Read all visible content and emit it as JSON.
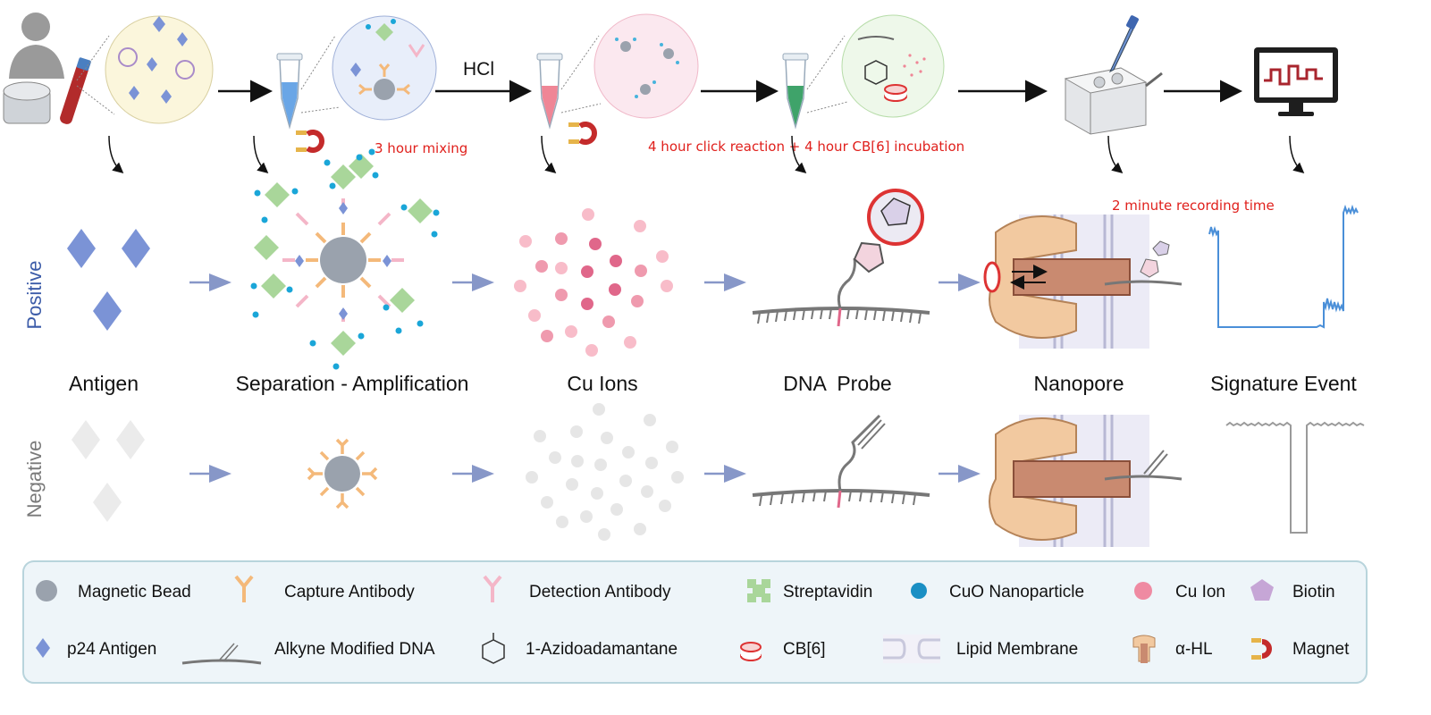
{
  "process": {
    "hcl_label": "HCl",
    "timing_mixing": "3 hour mixing",
    "timing_click": "4 hour click reaction + 4 hour CB[6] incubation",
    "timing_recording": "2 minute recording time"
  },
  "rows": {
    "positive": "Positive",
    "negative": "Negative"
  },
  "stages": [
    "Antigen",
    "Separation - Amplification",
    "Cu Ions",
    "DNA  Probe",
    "Nanopore",
    "Signature Event"
  ],
  "legend": [
    {
      "icon": "magnetic-bead-icon",
      "label": "Magnetic Bead"
    },
    {
      "icon": "capture-antibody-icon",
      "label": "Capture Antibody"
    },
    {
      "icon": "detection-antibody-icon",
      "label": "Detection Antibody"
    },
    {
      "icon": "streptavidin-icon",
      "label": "Streptavidin"
    },
    {
      "icon": "cuo-nanoparticle-icon",
      "label": "CuO Nanoparticle"
    },
    {
      "icon": "cu-ion-icon",
      "label": "Cu Ion"
    },
    {
      "icon": "biotin-icon",
      "label": "Biotin"
    },
    {
      "icon": "p24-antigen-icon",
      "label": "p24 Antigen"
    },
    {
      "icon": "alkyne-dna-icon",
      "label": "Alkyne Modified DNA"
    },
    {
      "icon": "azidoadamantane-icon",
      "label": "1-Azidoadamantane"
    },
    {
      "icon": "cb6-icon",
      "label": "CB[6]"
    },
    {
      "icon": "lipid-membrane-icon",
      "label": "Lipid Membrane"
    },
    {
      "icon": "alpha-hl-icon",
      "label": "α-HL"
    },
    {
      "icon": "magnet-icon",
      "label": "Magnet"
    }
  ],
  "colors": {
    "antigen": "#7b93d6",
    "capture_antibody": "#f4b97a",
    "detection_antibody": "#f4b6c8",
    "streptavidin": "#a9d69a",
    "cuo": "#1aa6d8",
    "cu_ion": "#e8789a",
    "biotin": "#c6a6d6",
    "bead": "#9aa2ad",
    "positive_label": "#3b5ba8",
    "negative_label": "#7a7a7a",
    "annotation": "#e0201c",
    "trace": "#4a8fd8"
  }
}
